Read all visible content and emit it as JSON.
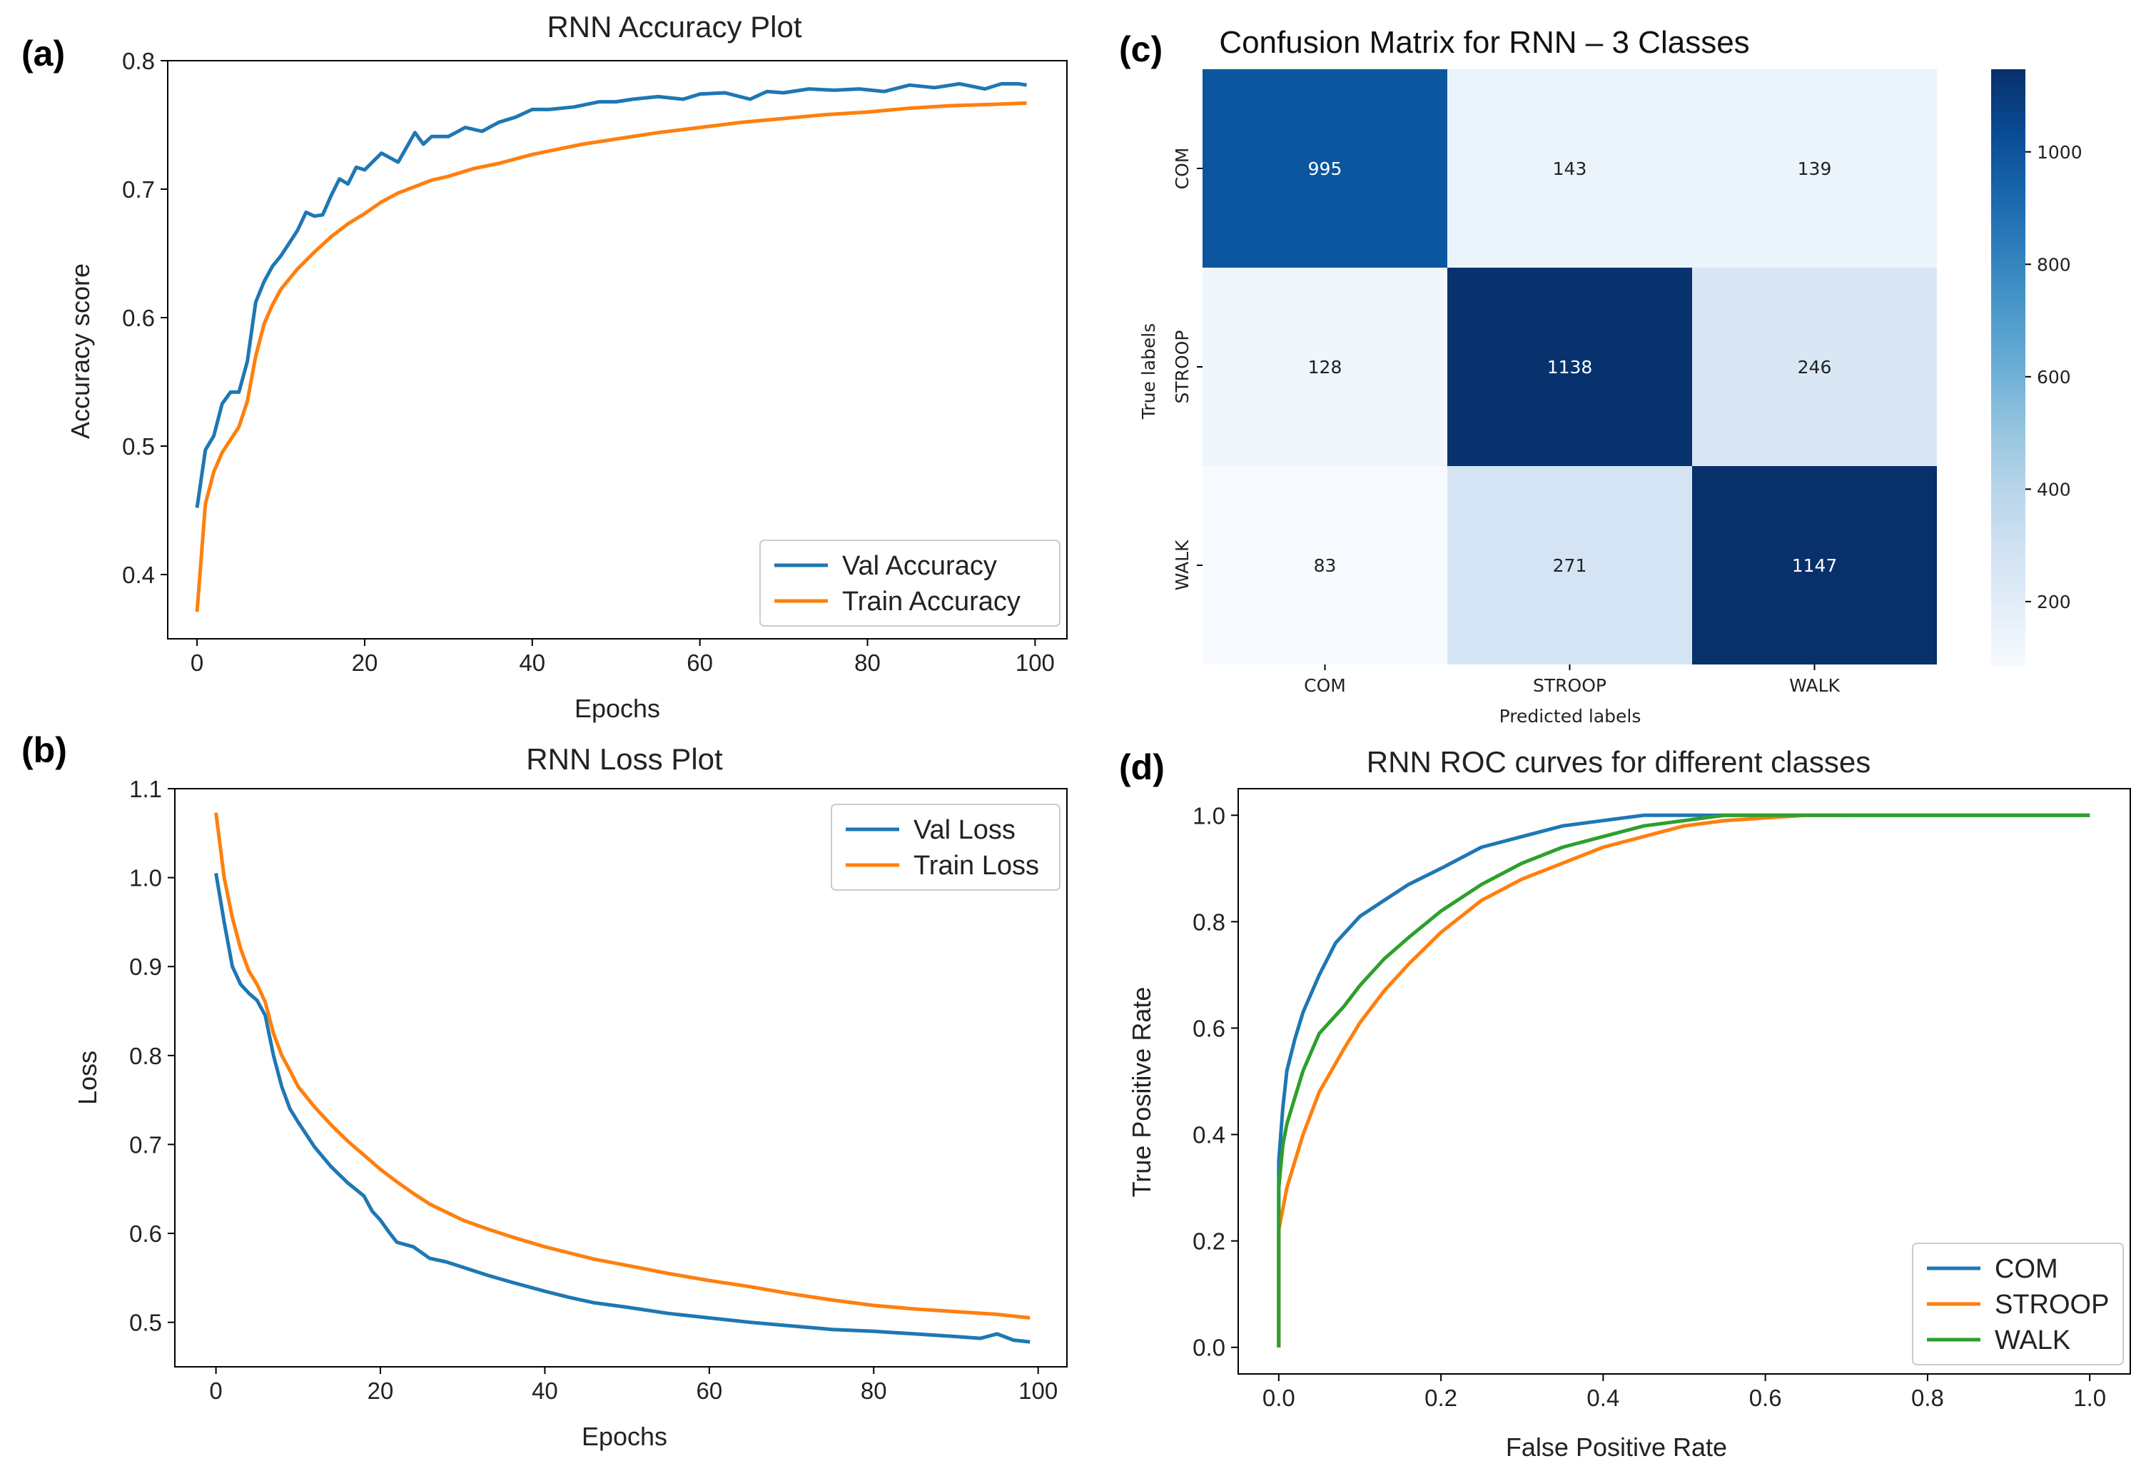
{
  "colors": {
    "val": "#1f77b4",
    "train": "#ff7f0e",
    "com": "#1f77b4",
    "stroop": "#ff7f0e",
    "walk": "#2ca02c"
  },
  "panels": {
    "a": "(a)",
    "b": "(b)",
    "c": "(c)",
    "d": "(d)"
  },
  "chart_data": [
    {
      "id": "acc",
      "type": "line",
      "title": "RNN Accuracy Plot",
      "xlabel": "Epochs",
      "ylabel": "Accuracy score",
      "xlim": [
        -3.5,
        103.8
      ],
      "ylim": [
        0.35,
        0.8
      ],
      "xticks": [
        0,
        20,
        40,
        60,
        80,
        100
      ],
      "yticks": [
        0.4,
        0.5,
        0.6,
        0.7,
        0.8
      ],
      "ytick_labels": [
        "0.4",
        "0.5",
        "0.6",
        "0.7",
        "0.8"
      ],
      "legend": "lower-right",
      "series": [
        {
          "name": "Val Accuracy",
          "color_key": "val",
          "points": [
            [
              0,
              0.452
            ],
            [
              1,
              0.497
            ],
            [
              2,
              0.508
            ],
            [
              3,
              0.533
            ],
            [
              4,
              0.542
            ],
            [
              5,
              0.542
            ],
            [
              6,
              0.566
            ],
            [
              7,
              0.612
            ],
            [
              8,
              0.628
            ],
            [
              9,
              0.64
            ],
            [
              10,
              0.648
            ],
            [
              11,
              0.658
            ],
            [
              12,
              0.668
            ],
            [
              13,
              0.682
            ],
            [
              14,
              0.679
            ],
            [
              15,
              0.68
            ],
            [
              16,
              0.695
            ],
            [
              17,
              0.708
            ],
            [
              18,
              0.704
            ],
            [
              19,
              0.717
            ],
            [
              20,
              0.715
            ],
            [
              22,
              0.728
            ],
            [
              24,
              0.721
            ],
            [
              26,
              0.744
            ],
            [
              27,
              0.735
            ],
            [
              28,
              0.741
            ],
            [
              30,
              0.741
            ],
            [
              32,
              0.748
            ],
            [
              34,
              0.745
            ],
            [
              36,
              0.752
            ],
            [
              38,
              0.756
            ],
            [
              40,
              0.762
            ],
            [
              42,
              0.762
            ],
            [
              45,
              0.764
            ],
            [
              48,
              0.768
            ],
            [
              50,
              0.768
            ],
            [
              52,
              0.77
            ],
            [
              55,
              0.772
            ],
            [
              58,
              0.77
            ],
            [
              60,
              0.774
            ],
            [
              63,
              0.775
            ],
            [
              66,
              0.77
            ],
            [
              68,
              0.776
            ],
            [
              70,
              0.775
            ],
            [
              73,
              0.778
            ],
            [
              76,
              0.777
            ],
            [
              79,
              0.778
            ],
            [
              82,
              0.776
            ],
            [
              85,
              0.781
            ],
            [
              88,
              0.779
            ],
            [
              91,
              0.782
            ],
            [
              94,
              0.778
            ],
            [
              96,
              0.782
            ],
            [
              98,
              0.782
            ],
            [
              99,
              0.781
            ]
          ]
        },
        {
          "name": "Train Accuracy",
          "color_key": "train",
          "points": [
            [
              0,
              0.371
            ],
            [
              1,
              0.455
            ],
            [
              2,
              0.48
            ],
            [
              3,
              0.495
            ],
            [
              4,
              0.505
            ],
            [
              5,
              0.515
            ],
            [
              6,
              0.535
            ],
            [
              7,
              0.57
            ],
            [
              8,
              0.595
            ],
            [
              9,
              0.61
            ],
            [
              10,
              0.622
            ],
            [
              12,
              0.638
            ],
            [
              14,
              0.651
            ],
            [
              16,
              0.663
            ],
            [
              18,
              0.673
            ],
            [
              20,
              0.681
            ],
            [
              22,
              0.69
            ],
            [
              24,
              0.697
            ],
            [
              26,
              0.702
            ],
            [
              28,
              0.707
            ],
            [
              30,
              0.71
            ],
            [
              33,
              0.716
            ],
            [
              36,
              0.72
            ],
            [
              40,
              0.727
            ],
            [
              43,
              0.731
            ],
            [
              46,
              0.735
            ],
            [
              50,
              0.739
            ],
            [
              55,
              0.744
            ],
            [
              60,
              0.748
            ],
            [
              65,
              0.752
            ],
            [
              70,
              0.755
            ],
            [
              75,
              0.758
            ],
            [
              80,
              0.76
            ],
            [
              85,
              0.763
            ],
            [
              90,
              0.765
            ],
            [
              95,
              0.766
            ],
            [
              99,
              0.767
            ]
          ]
        }
      ]
    },
    {
      "id": "loss",
      "type": "line",
      "title": "RNN Loss Plot",
      "xlabel": "Epochs",
      "ylabel": "Loss",
      "xlim": [
        -5,
        103.5
      ],
      "ylim": [
        0.45,
        1.1
      ],
      "xticks": [
        0,
        20,
        40,
        60,
        80,
        100
      ],
      "yticks": [
        0.5,
        0.6,
        0.7,
        0.8,
        0.9,
        1.0,
        1.1
      ],
      "ytick_labels": [
        "0.5",
        "0.6",
        "0.7",
        "0.8",
        "0.9",
        "1.0",
        "1.1"
      ],
      "legend": "upper-right",
      "series": [
        {
          "name": "Val Loss",
          "color_key": "val",
          "points": [
            [
              0,
              1.005
            ],
            [
              1,
              0.95
            ],
            [
              2,
              0.9
            ],
            [
              3,
              0.88
            ],
            [
              4,
              0.87
            ],
            [
              5,
              0.862
            ],
            [
              6,
              0.845
            ],
            [
              7,
              0.8
            ],
            [
              8,
              0.765
            ],
            [
              9,
              0.74
            ],
            [
              10,
              0.725
            ],
            [
              12,
              0.697
            ],
            [
              14,
              0.675
            ],
            [
              16,
              0.657
            ],
            [
              18,
              0.642
            ],
            [
              19,
              0.625
            ],
            [
              20,
              0.615
            ],
            [
              21,
              0.602
            ],
            [
              22,
              0.59
            ],
            [
              24,
              0.585
            ],
            [
              26,
              0.572
            ],
            [
              28,
              0.568
            ],
            [
              30,
              0.562
            ],
            [
              33,
              0.553
            ],
            [
              36,
              0.545
            ],
            [
              40,
              0.535
            ],
            [
              43,
              0.528
            ],
            [
              46,
              0.522
            ],
            [
              50,
              0.517
            ],
            [
              55,
              0.51
            ],
            [
              60,
              0.505
            ],
            [
              65,
              0.5
            ],
            [
              70,
              0.496
            ],
            [
              75,
              0.492
            ],
            [
              80,
              0.49
            ],
            [
              85,
              0.487
            ],
            [
              90,
              0.484
            ],
            [
              93,
              0.482
            ],
            [
              95,
              0.487
            ],
            [
              97,
              0.48
            ],
            [
              99,
              0.478
            ]
          ]
        },
        {
          "name": "Train Loss",
          "color_key": "train",
          "points": [
            [
              0,
              1.073
            ],
            [
              1,
              1.0
            ],
            [
              2,
              0.955
            ],
            [
              3,
              0.92
            ],
            [
              4,
              0.895
            ],
            [
              5,
              0.88
            ],
            [
              6,
              0.86
            ],
            [
              7,
              0.825
            ],
            [
              8,
              0.8
            ],
            [
              9,
              0.783
            ],
            [
              10,
              0.765
            ],
            [
              12,
              0.742
            ],
            [
              14,
              0.722
            ],
            [
              16,
              0.704
            ],
            [
              18,
              0.688
            ],
            [
              20,
              0.672
            ],
            [
              22,
              0.658
            ],
            [
              24,
              0.645
            ],
            [
              26,
              0.633
            ],
            [
              28,
              0.624
            ],
            [
              30,
              0.615
            ],
            [
              33,
              0.605
            ],
            [
              36,
              0.596
            ],
            [
              40,
              0.585
            ],
            [
              43,
              0.578
            ],
            [
              46,
              0.571
            ],
            [
              50,
              0.564
            ],
            [
              55,
              0.555
            ],
            [
              60,
              0.547
            ],
            [
              65,
              0.54
            ],
            [
              70,
              0.532
            ],
            [
              75,
              0.525
            ],
            [
              80,
              0.519
            ],
            [
              85,
              0.515
            ],
            [
              90,
              0.512
            ],
            [
              95,
              0.509
            ],
            [
              99,
              0.505
            ]
          ]
        }
      ]
    },
    {
      "id": "cm",
      "type": "heatmap",
      "title": "Confusion Matrix for RNN – 3 Classes",
      "xlabel": "Predicted labels",
      "ylabel": "True labels",
      "x_categories": [
        "COM",
        "STROOP",
        "WALK"
      ],
      "y_categories": [
        "COM",
        "STROOP",
        "WALK"
      ],
      "values": [
        [
          995,
          143,
          139
        ],
        [
          128,
          1138,
          246
        ],
        [
          83,
          271,
          1147
        ]
      ],
      "colorbar_range": [
        83,
        1147
      ],
      "colorbar_ticks": [
        200,
        400,
        600,
        800,
        1000
      ],
      "colormap": "Blues"
    },
    {
      "id": "roc",
      "type": "line",
      "title": "RNN ROC curves for different classes",
      "xlabel": "False Positive Rate",
      "ylabel": "True Positive Rate",
      "xlim": [
        -0.05,
        1.05
      ],
      "ylim": [
        -0.05,
        1.05
      ],
      "xticks": [
        0.0,
        0.2,
        0.4,
        0.6,
        0.8,
        1.0
      ],
      "yticks": [
        0.0,
        0.2,
        0.4,
        0.6,
        0.8,
        1.0
      ],
      "xtick_labels": [
        "0.0",
        "0.2",
        "0.4",
        "0.6",
        "0.8",
        "1.0"
      ],
      "ytick_labels": [
        "0.0",
        "0.2",
        "0.4",
        "0.6",
        "0.8",
        "1.0"
      ],
      "legend": "lower-right",
      "series": [
        {
          "name": "COM",
          "color_key": "com",
          "points": [
            [
              0,
              0
            ],
            [
              0,
              0.35
            ],
            [
              0.005,
              0.45
            ],
            [
              0.01,
              0.52
            ],
            [
              0.02,
              0.58
            ],
            [
              0.03,
              0.63
            ],
            [
              0.05,
              0.7
            ],
            [
              0.07,
              0.76
            ],
            [
              0.1,
              0.81
            ],
            [
              0.13,
              0.84
            ],
            [
              0.16,
              0.87
            ],
            [
              0.2,
              0.9
            ],
            [
              0.25,
              0.94
            ],
            [
              0.3,
              0.96
            ],
            [
              0.35,
              0.98
            ],
            [
              0.4,
              0.99
            ],
            [
              0.45,
              1.0
            ],
            [
              0.6,
              1.0
            ],
            [
              1.0,
              1.0
            ]
          ]
        },
        {
          "name": "STROOP",
          "color_key": "stroop",
          "points": [
            [
              0,
              0
            ],
            [
              0,
              0.22
            ],
            [
              0.005,
              0.26
            ],
            [
              0.01,
              0.3
            ],
            [
              0.02,
              0.35
            ],
            [
              0.03,
              0.4
            ],
            [
              0.05,
              0.48
            ],
            [
              0.08,
              0.56
            ],
            [
              0.1,
              0.61
            ],
            [
              0.13,
              0.67
            ],
            [
              0.16,
              0.72
            ],
            [
              0.2,
              0.78
            ],
            [
              0.25,
              0.84
            ],
            [
              0.3,
              0.88
            ],
            [
              0.35,
              0.91
            ],
            [
              0.4,
              0.94
            ],
            [
              0.45,
              0.96
            ],
            [
              0.5,
              0.98
            ],
            [
              0.55,
              0.99
            ],
            [
              0.65,
              1.0
            ],
            [
              0.7,
              1.0
            ]
          ]
        },
        {
          "name": "WALK",
          "color_key": "walk",
          "points": [
            [
              0,
              0
            ],
            [
              0,
              0.3
            ],
            [
              0.005,
              0.38
            ],
            [
              0.01,
              0.42
            ],
            [
              0.02,
              0.47
            ],
            [
              0.03,
              0.52
            ],
            [
              0.05,
              0.59
            ],
            [
              0.08,
              0.64
            ],
            [
              0.1,
              0.68
            ],
            [
              0.13,
              0.73
            ],
            [
              0.16,
              0.77
            ],
            [
              0.2,
              0.82
            ],
            [
              0.25,
              0.87
            ],
            [
              0.3,
              0.91
            ],
            [
              0.35,
              0.94
            ],
            [
              0.4,
              0.96
            ],
            [
              0.45,
              0.98
            ],
            [
              0.5,
              0.99
            ],
            [
              0.55,
              1.0
            ],
            [
              1.0,
              1.0
            ]
          ]
        }
      ]
    }
  ]
}
